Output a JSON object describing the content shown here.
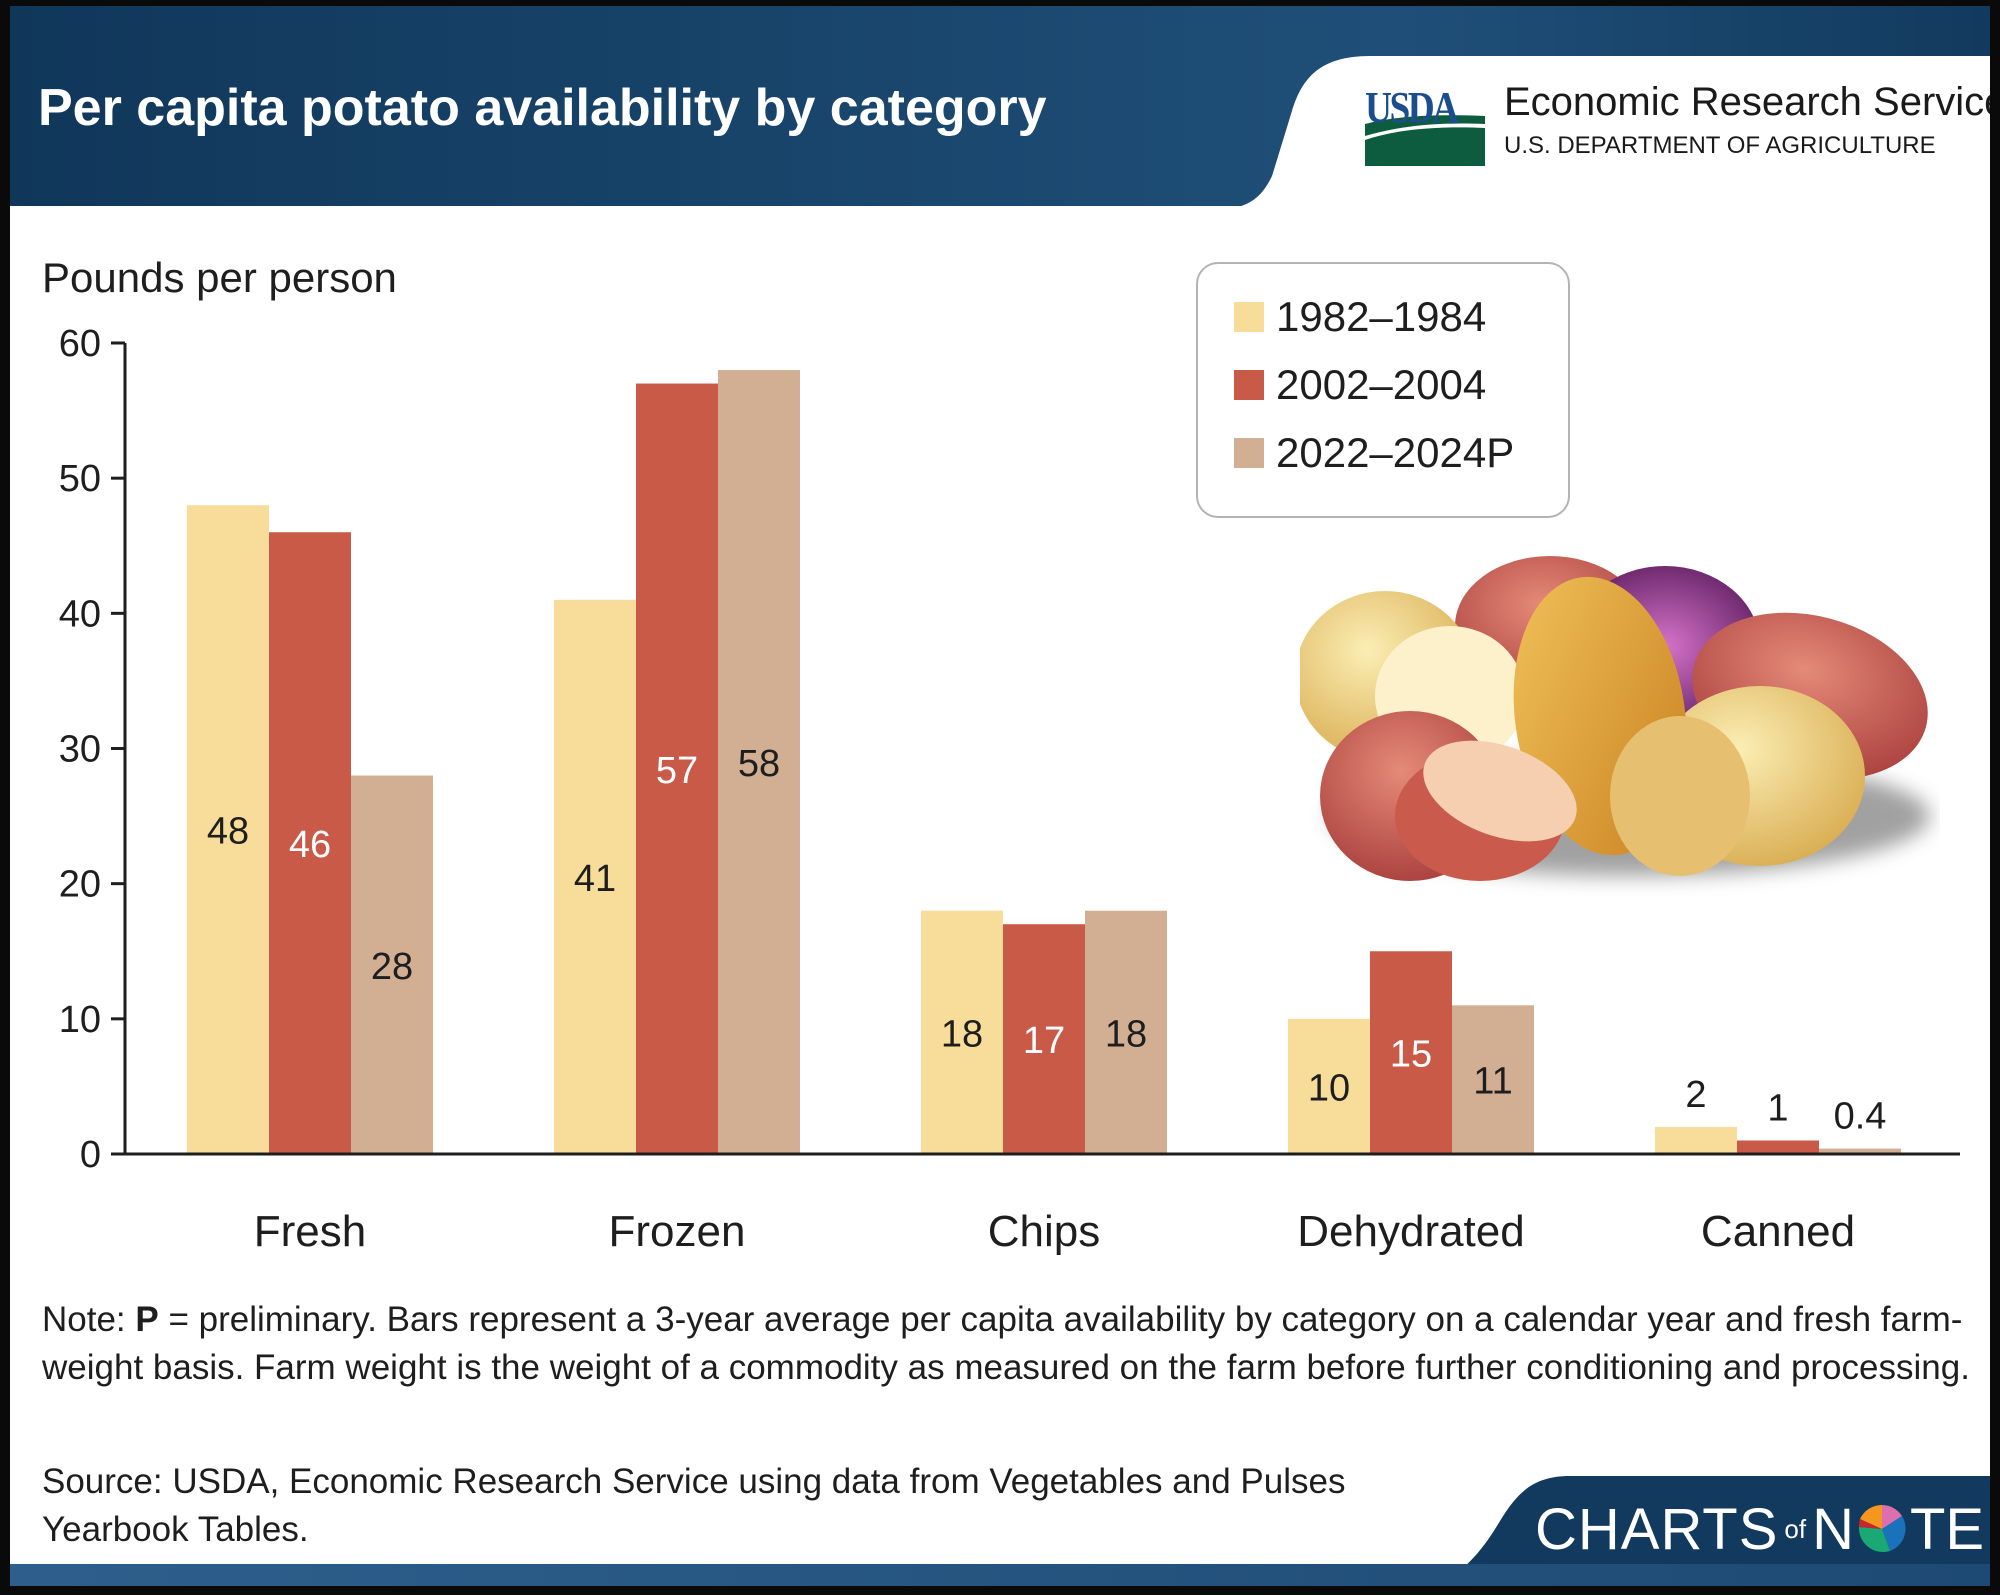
{
  "header": {
    "title": "Per capita potato availability by category",
    "logo": {
      "agency_abbr": "USDA",
      "agency_name": "Economic Research Service",
      "department": "U.S. DEPARTMENT OF AGRICULTURE"
    }
  },
  "colors": {
    "header_blue": "#123a5e",
    "series_1982": "#f7dc9a",
    "series_2002": "#c95a48",
    "series_2022": "#d2ae92",
    "usda_blue": "#1b4e8f",
    "usda_green": "#0e5c3f"
  },
  "chart_data": {
    "type": "bar",
    "title": "Per capita potato availability by category",
    "ylabel": "Pounds per person",
    "xlabel": "",
    "ylim": [
      0,
      60
    ],
    "yticks": [
      0,
      10,
      20,
      30,
      40,
      50,
      60
    ],
    "grid": false,
    "legend_position": "top-right",
    "categories": [
      "Fresh",
      "Frozen",
      "Chips",
      "Dehydrated",
      "Canned"
    ],
    "series": [
      {
        "name": "1982–1984",
        "values": [
          48,
          41,
          18,
          10,
          2
        ],
        "labels": [
          "48",
          "41",
          "18",
          "10",
          "2"
        ],
        "color": "#f7dc9a",
        "label_color": "#1e1e1e"
      },
      {
        "name": "2002–2004",
        "values": [
          46,
          57,
          17,
          15,
          1
        ],
        "labels": [
          "46",
          "57",
          "17",
          "15",
          "1"
        ],
        "color": "#c95a48",
        "label_color": "#ffffff"
      },
      {
        "name": "2022–2024P",
        "values": [
          28,
          58,
          18,
          11,
          0.4
        ],
        "labels": [
          "28",
          "58",
          "18",
          "11",
          "0.4"
        ],
        "color": "#d2ae92",
        "label_color": "#1e1e1e"
      }
    ]
  },
  "footer": {
    "note_prefix": "Note: ",
    "note_bold": "P",
    "note_text": " = preliminary. Bars represent a 3-year average per capita availability by category on a calendar year and fresh farm-weight basis. Farm weight is the weight of a commodity as measured on the farm before further conditioning and processing.",
    "source": "Source: USDA, Economic Research Service using data from Vegetables and Pulses Yearbook Tables.",
    "brand": {
      "charts": "CHARTS",
      "of": "of",
      "n": "N",
      "te": "TE"
    }
  }
}
